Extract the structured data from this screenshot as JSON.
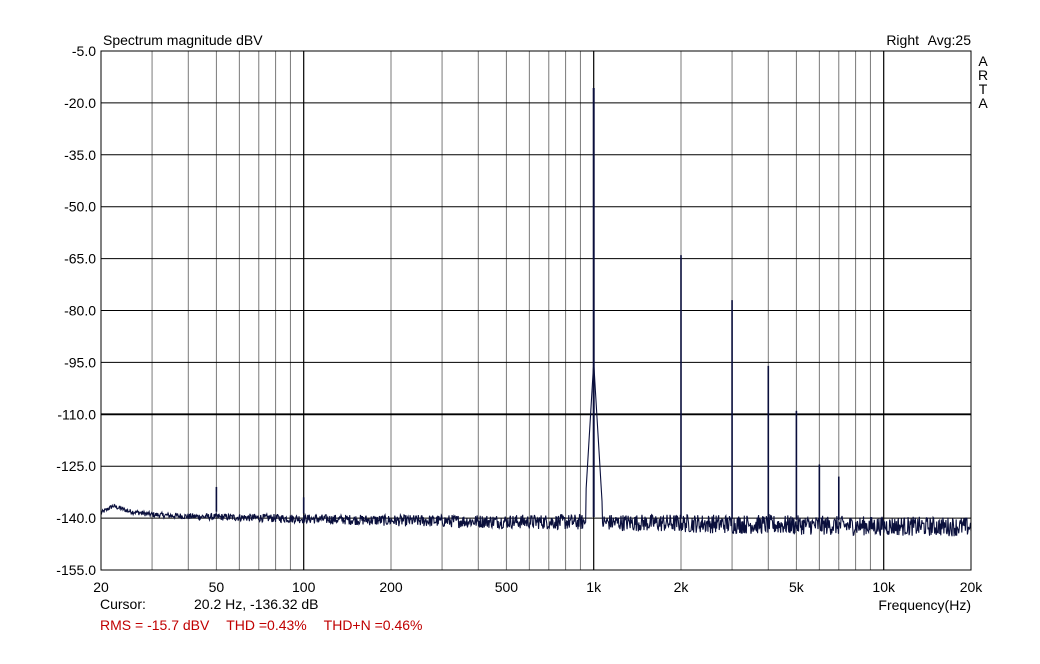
{
  "chart_data": {
    "type": "line",
    "title": "Spectrum magnitude dBV",
    "channel": "Right",
    "averaging": "Avg:25",
    "watermark": "ARTA",
    "xlabel": "Frequency(Hz)",
    "ylabel": "",
    "x_scale": "log",
    "xlim": [
      20,
      20000
    ],
    "ylim": [
      -155.0,
      -5.0
    ],
    "x_ticks": [
      {
        "value": 20,
        "label": "20"
      },
      {
        "value": 50,
        "label": "50"
      },
      {
        "value": 100,
        "label": "100"
      },
      {
        "value": 200,
        "label": "200"
      },
      {
        "value": 500,
        "label": "500"
      },
      {
        "value": 1000,
        "label": "1k"
      },
      {
        "value": 2000,
        "label": "2k"
      },
      {
        "value": 5000,
        "label": "5k"
      },
      {
        "value": 10000,
        "label": "10k"
      },
      {
        "value": 20000,
        "label": "20k"
      }
    ],
    "y_ticks": [
      {
        "value": -5.0,
        "label": "-5.0"
      },
      {
        "value": -20.0,
        "label": "-20.0"
      },
      {
        "value": -35.0,
        "label": "-35.0"
      },
      {
        "value": -50.0,
        "label": "-50.0"
      },
      {
        "value": -65.0,
        "label": "-65.0"
      },
      {
        "value": -80.0,
        "label": "-80.0"
      },
      {
        "value": -95.0,
        "label": "-95.0"
      },
      {
        "value": -110.0,
        "label": "-110.0"
      },
      {
        "value": -125.0,
        "label": "-125.0"
      },
      {
        "value": -140.0,
        "label": "-140.0"
      },
      {
        "value": -155.0,
        "label": "-155.0"
      }
    ],
    "grid": true,
    "series": [
      {
        "color": "#0a0f3c",
        "noise_floor": [
          {
            "x": 20,
            "y": -138.5
          },
          {
            "x": 22,
            "y": -136.5
          },
          {
            "x": 25,
            "y": -138.0
          },
          {
            "x": 30,
            "y": -139.0
          },
          {
            "x": 40,
            "y": -139.5
          },
          {
            "x": 60,
            "y": -139.8
          },
          {
            "x": 100,
            "y": -140.2
          },
          {
            "x": 200,
            "y": -140.7
          },
          {
            "x": 500,
            "y": -141.0
          },
          {
            "x": 1000,
            "y": -141.2
          },
          {
            "x": 2000,
            "y": -141.5
          },
          {
            "x": 5000,
            "y": -142.0
          },
          {
            "x": 10000,
            "y": -142.3
          },
          {
            "x": 20000,
            "y": -142.5
          }
        ],
        "peaks": [
          {
            "x": 50,
            "y": -131.0
          },
          {
            "x": 100,
            "y": -134.0
          },
          {
            "x": 1000,
            "y": -15.7
          },
          {
            "x": 2000,
            "y": -64.0
          },
          {
            "x": 3000,
            "y": -77.0
          },
          {
            "x": 4000,
            "y": -96.0
          },
          {
            "x": 5000,
            "y": -109.0
          },
          {
            "x": 6000,
            "y": -124.5
          },
          {
            "x": 7000,
            "y": -128.0
          }
        ]
      }
    ]
  },
  "cursor": {
    "label": "Cursor:",
    "value": "20.2 Hz, -136.32 dB"
  },
  "measurements": {
    "rms": "RMS =  -15.7 dBV",
    "thd": "THD =0.43%",
    "thd_n": "THD+N =0.46%",
    "color": "#c00000"
  }
}
